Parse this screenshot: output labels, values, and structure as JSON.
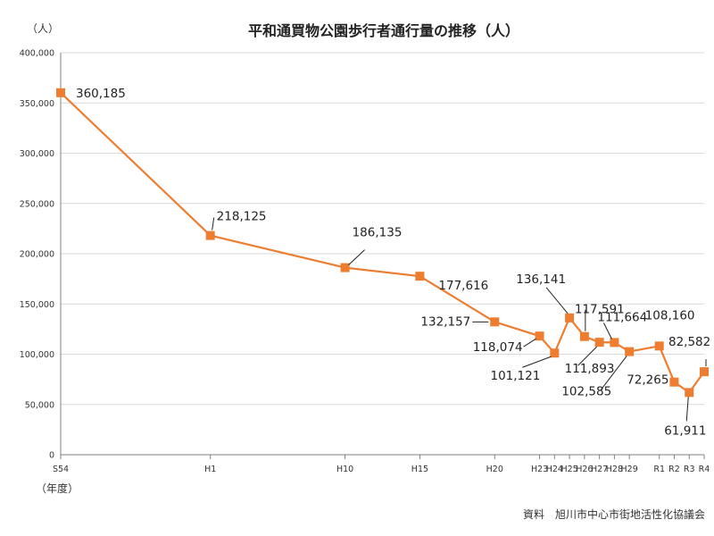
{
  "chart_data": {
    "type": "line",
    "title": "平和通買物公園歩行者通行量の推移（人）",
    "y_unit": "（人）",
    "x_unit": "（年度）",
    "source": "資料　旭川市中心市街地活性化協議会",
    "ylim": [
      0,
      400000
    ],
    "y_ticks": [
      "0",
      "50,000",
      "100,000",
      "150,000",
      "200,000",
      "250,000",
      "300,000",
      "350,000",
      "400,000"
    ],
    "grid": true,
    "legend": "none",
    "series_color": "#ED7D31",
    "x_range": [
      1979,
      2022
    ],
    "x": [
      1979,
      1989,
      1998,
      2003,
      2008,
      2011,
      2012,
      2013,
      2014,
      2015,
      2016,
      2017,
      2019,
      2020,
      2021,
      2022
    ],
    "categories": [
      "S54",
      "H1",
      "H10",
      "H15",
      "H20",
      "H23",
      "H24",
      "H25",
      "H26",
      "H27",
      "H28",
      "H29",
      "R1",
      "R2",
      "R3",
      "R4"
    ],
    "values": [
      360185,
      218125,
      186135,
      177616,
      132157,
      118074,
      101121,
      136141,
      117591,
      111893,
      111664,
      102585,
      108160,
      72265,
      61911,
      82582
    ],
    "labels": [
      "360,185",
      "218,125",
      "186,135",
      "177,616",
      "132,157",
      "118,074",
      "101,121",
      "136,141",
      "117,591",
      "111,893",
      "111,664",
      "102,585",
      "108,160",
      "72,265",
      "61,911",
      "82,582"
    ]
  }
}
